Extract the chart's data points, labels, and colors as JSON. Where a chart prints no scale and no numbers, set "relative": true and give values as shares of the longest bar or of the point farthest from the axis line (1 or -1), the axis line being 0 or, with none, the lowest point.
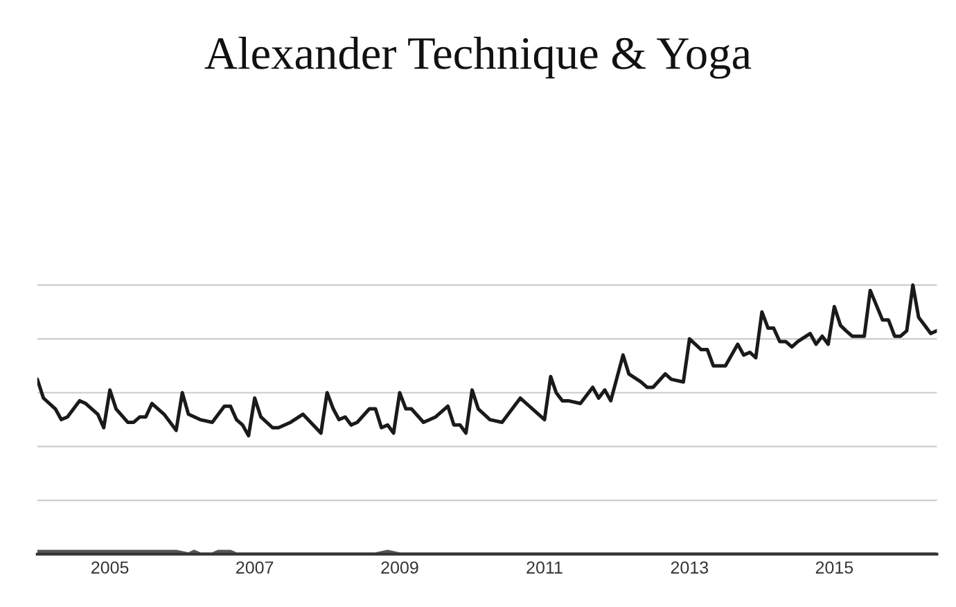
{
  "chart_data": {
    "type": "line",
    "title": "Alexander Technique & Yoga",
    "relative": true,
    "grid": "y",
    "legend": false,
    "xlim": [
      "2004-01",
      "2016-06"
    ],
    "xticks": [
      "2005",
      "2007",
      "2009",
      "2011",
      "2013",
      "2015"
    ],
    "series": [
      {
        "color": "#1a1a1a",
        "x": [
          "2004-01",
          "2004-02",
          "2004-04",
          "2004-05",
          "2004-06",
          "2004-08",
          "2004-09",
          "2004-11",
          "2004-12",
          "2005-01",
          "2005-02",
          "2005-04",
          "2005-05",
          "2005-06",
          "2005-07",
          "2005-08",
          "2005-10",
          "2005-11",
          "2005-12",
          "2006-01",
          "2006-02",
          "2006-04",
          "2006-06",
          "2006-08",
          "2006-09",
          "2006-10",
          "2006-11",
          "2006-12",
          "2007-01",
          "2007-02",
          "2007-04",
          "2007-05",
          "2007-07",
          "2007-09",
          "2007-12",
          "2008-01",
          "2008-02",
          "2008-03",
          "2008-04",
          "2008-05",
          "2008-06",
          "2008-08",
          "2008-09",
          "2008-10",
          "2008-11",
          "2008-12",
          "2009-01",
          "2009-02",
          "2009-03",
          "2009-05",
          "2009-07",
          "2009-09",
          "2009-10",
          "2009-11",
          "2009-12",
          "2010-01",
          "2010-02",
          "2010-04",
          "2010-06",
          "2010-08",
          "2010-09",
          "2010-11",
          "2011-01",
          "2011-02",
          "2011-03",
          "2011-04",
          "2011-05",
          "2011-07",
          "2011-09",
          "2011-10",
          "2011-11",
          "2011-12",
          "2012-02",
          "2012-03",
          "2012-05",
          "2012-06",
          "2012-07",
          "2012-09",
          "2012-10",
          "2012-12",
          "2013-01",
          "2013-03",
          "2013-04",
          "2013-05",
          "2013-07",
          "2013-09",
          "2013-10",
          "2013-11",
          "2013-12",
          "2014-01",
          "2014-02",
          "2014-03",
          "2014-04",
          "2014-05",
          "2014-06",
          "2014-07",
          "2014-09",
          "2014-10",
          "2014-11",
          "2014-12",
          "2015-01",
          "2015-02",
          "2015-03",
          "2015-04",
          "2015-06",
          "2015-07",
          "2015-09",
          "2015-10",
          "2015-11",
          "2015-12",
          "2016-01",
          "2016-02",
          "2016-03",
          "2016-04",
          "2016-05",
          "2016-06"
        ],
        "values": [
          0.65,
          0.58,
          0.54,
          0.5,
          0.51,
          0.57,
          0.56,
          0.52,
          0.47,
          0.61,
          0.54,
          0.49,
          0.49,
          0.51,
          0.51,
          0.56,
          0.52,
          0.49,
          0.46,
          0.6,
          0.52,
          0.5,
          0.49,
          0.55,
          0.55,
          0.5,
          0.48,
          0.44,
          0.58,
          0.51,
          0.47,
          0.47,
          0.49,
          0.52,
          0.45,
          0.6,
          0.54,
          0.5,
          0.51,
          0.48,
          0.49,
          0.54,
          0.54,
          0.47,
          0.48,
          0.45,
          0.6,
          0.54,
          0.54,
          0.49,
          0.51,
          0.55,
          0.48,
          0.48,
          0.45,
          0.61,
          0.54,
          0.5,
          0.49,
          0.55,
          0.58,
          0.54,
          0.5,
          0.66,
          0.6,
          0.57,
          0.57,
          0.56,
          0.62,
          0.58,
          0.61,
          0.57,
          0.74,
          0.67,
          0.64,
          0.62,
          0.62,
          0.67,
          0.65,
          0.64,
          0.8,
          0.76,
          0.76,
          0.7,
          0.7,
          0.78,
          0.74,
          0.75,
          0.73,
          0.9,
          0.84,
          0.84,
          0.79,
          0.79,
          0.77,
          0.79,
          0.82,
          0.78,
          0.81,
          0.78,
          0.92,
          0.85,
          0.83,
          0.81,
          0.81,
          0.98,
          0.87,
          0.87,
          0.81,
          0.81,
          0.83,
          1.0,
          0.88,
          0.85,
          0.82,
          0.83
        ]
      },
      {
        "color": "#555555",
        "x": [
          "2004-01",
          "2005-12",
          "2006-02",
          "2006-03",
          "2006-04",
          "2006-06",
          "2006-07",
          "2006-09",
          "2006-10",
          "2008-09",
          "2008-11",
          "2009-01",
          "2016-06"
        ],
        "values": [
          0.01,
          0.01,
          0,
          0.01,
          0,
          0,
          0.01,
          0.01,
          0,
          0,
          0.01,
          0,
          0
        ]
      }
    ]
  }
}
